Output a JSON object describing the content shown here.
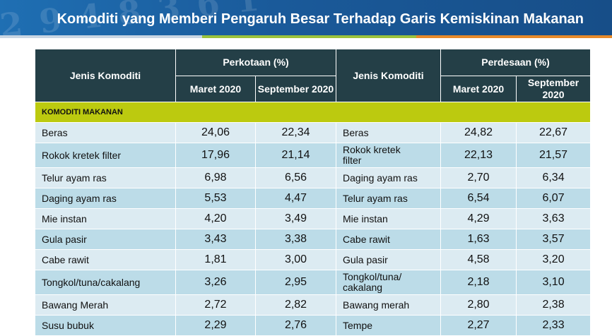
{
  "title": "Komoditi yang Memberi Pengaruh Besar Terhadap Garis Kemiskinan Makanan",
  "headers": {
    "jenis_left": "Jenis Komoditi",
    "perkotaan": "Perkotaan (%)",
    "jenis_right": "Jenis Komoditi",
    "perdesaan": "Perdesaan (%)",
    "maret": "Maret 2020",
    "september": "September 2020",
    "september_right": "September 2020"
  },
  "category": "KOMODITI MAKANAN",
  "rows": [
    {
      "kota_item": "Beras",
      "kota_mar": "24,06",
      "kota_sep": "22,34",
      "desa_item": "Beras",
      "desa_mar": "24,82",
      "desa_sep": "22,67"
    },
    {
      "kota_item": "Rokok kretek filter",
      "kota_mar": "17,96",
      "kota_sep": "21,14",
      "desa_item": "Rokok kretek filter",
      "desa_mar": "22,13",
      "desa_sep": "21,57"
    },
    {
      "kota_item": "Telur ayam ras",
      "kota_mar": "6,98",
      "kota_sep": "6,56",
      "desa_item": "Daging ayam ras",
      "desa_mar": "2,70",
      "desa_sep": "6,34"
    },
    {
      "kota_item": "Daging ayam ras",
      "kota_mar": "5,53",
      "kota_sep": "4,47",
      "desa_item": "Telur ayam ras",
      "desa_mar": "6,54",
      "desa_sep": "6,07"
    },
    {
      "kota_item": "Mie instan",
      "kota_mar": "4,20",
      "kota_sep": "3,49",
      "desa_item": "Mie instan",
      "desa_mar": "4,29",
      "desa_sep": "3,63"
    },
    {
      "kota_item": "Gula pasir",
      "kota_mar": "3,43",
      "kota_sep": "3,38",
      "desa_item": "Cabe rawit",
      "desa_mar": "1,63",
      "desa_sep": "3,57"
    },
    {
      "kota_item": "Cabe rawit",
      "kota_mar": "1,81",
      "kota_sep": "3,00",
      "desa_item": "Gula pasir",
      "desa_mar": "4,58",
      "desa_sep": "3,20"
    },
    {
      "kota_item": "Tongkol/tuna/cakalang",
      "kota_mar": "3,26",
      "kota_sep": "2,95",
      "desa_item": "Tongkol/tuna/ cakalang",
      "desa_mar": "2,18",
      "desa_sep": "3,10"
    },
    {
      "kota_item": "Bawang Merah",
      "kota_mar": "2,72",
      "kota_sep": "2,82",
      "desa_item": "Bawang merah",
      "desa_mar": "2,80",
      "desa_sep": "2,38"
    },
    {
      "kota_item": "Susu bubuk",
      "kota_mar": "2,29",
      "kota_sep": "2,76",
      "desa_item": "Tempe",
      "desa_mar": "2,27",
      "desa_sep": "2,33"
    }
  ]
}
